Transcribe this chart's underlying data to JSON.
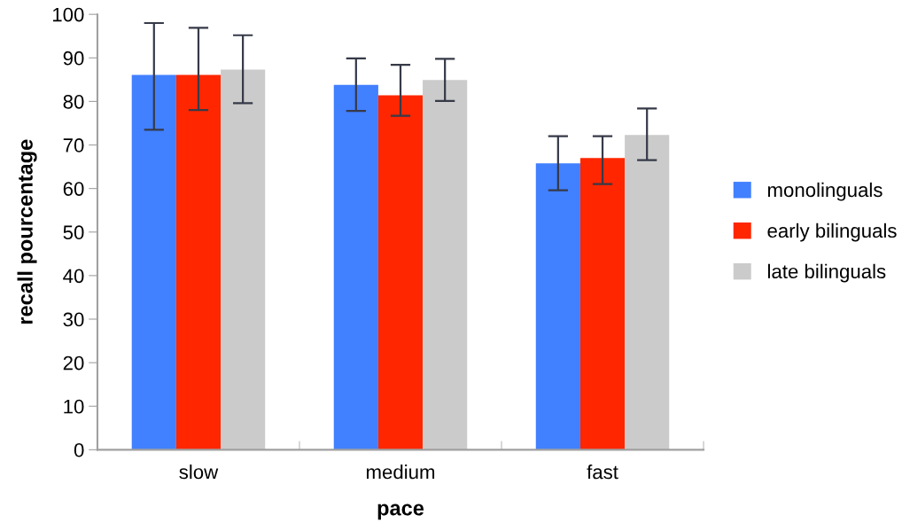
{
  "chart_data": {
    "type": "bar",
    "xlabel": "pace",
    "ylabel": "recall pourcentage",
    "categories": [
      "slow",
      "medium",
      "fast"
    ],
    "series": [
      {
        "name": "monolinguals",
        "color": "#4180ff",
        "values": [
          86.1,
          83.8,
          65.8
        ],
        "errors": [
          [
            73.5,
            98.0
          ],
          [
            77.8,
            89.9
          ],
          [
            59.6,
            72.0
          ]
        ]
      },
      {
        "name": "early bilinguals",
        "color": "#ff2600",
        "values": [
          86.1,
          81.4,
          67.0
        ],
        "errors": [
          [
            78.0,
            96.9
          ],
          [
            76.7,
            88.4
          ],
          [
            61.0,
            72.0
          ]
        ]
      },
      {
        "name": "late bilinguals",
        "color": "#cbcbcb",
        "values": [
          87.3,
          84.9,
          72.3
        ],
        "errors": [
          [
            79.6,
            95.2
          ],
          [
            80.1,
            89.8
          ],
          [
            66.5,
            78.4
          ]
        ]
      }
    ],
    "ylim": [
      0,
      100
    ],
    "yticks": [
      0,
      10,
      20,
      30,
      40,
      50,
      60,
      70,
      80,
      90,
      100
    ],
    "grid": false,
    "legend": "right"
  }
}
